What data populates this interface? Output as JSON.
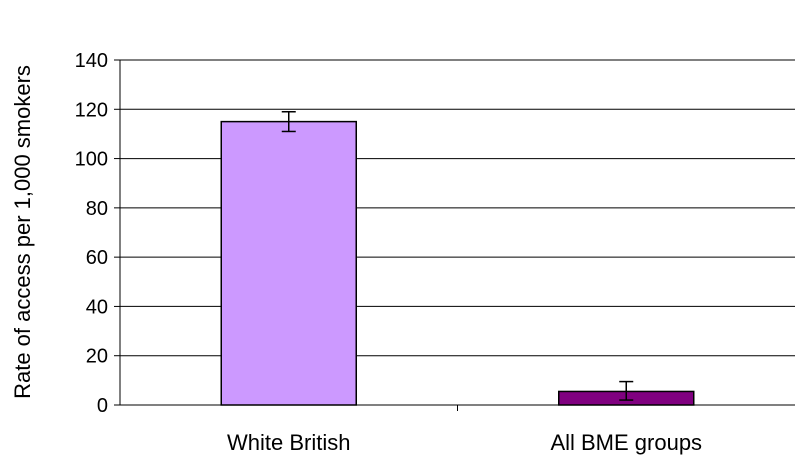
{
  "chart_data": {
    "type": "bar",
    "title": "",
    "xlabel": "",
    "ylabel": "Rate of access per 1,000 smokers",
    "categories": [
      "White British",
      "All BME groups"
    ],
    "values": [
      115,
      5.5
    ],
    "error_bars": [
      {
        "low": 111,
        "high": 119
      },
      {
        "low": 2,
        "high": 9.5
      }
    ],
    "bar_colors": [
      "#cc99ff",
      "#800080"
    ],
    "ylim": [
      0,
      140
    ],
    "yticks": [
      0,
      20,
      40,
      60,
      80,
      100,
      120,
      140
    ],
    "grid": true,
    "legend": "none"
  }
}
